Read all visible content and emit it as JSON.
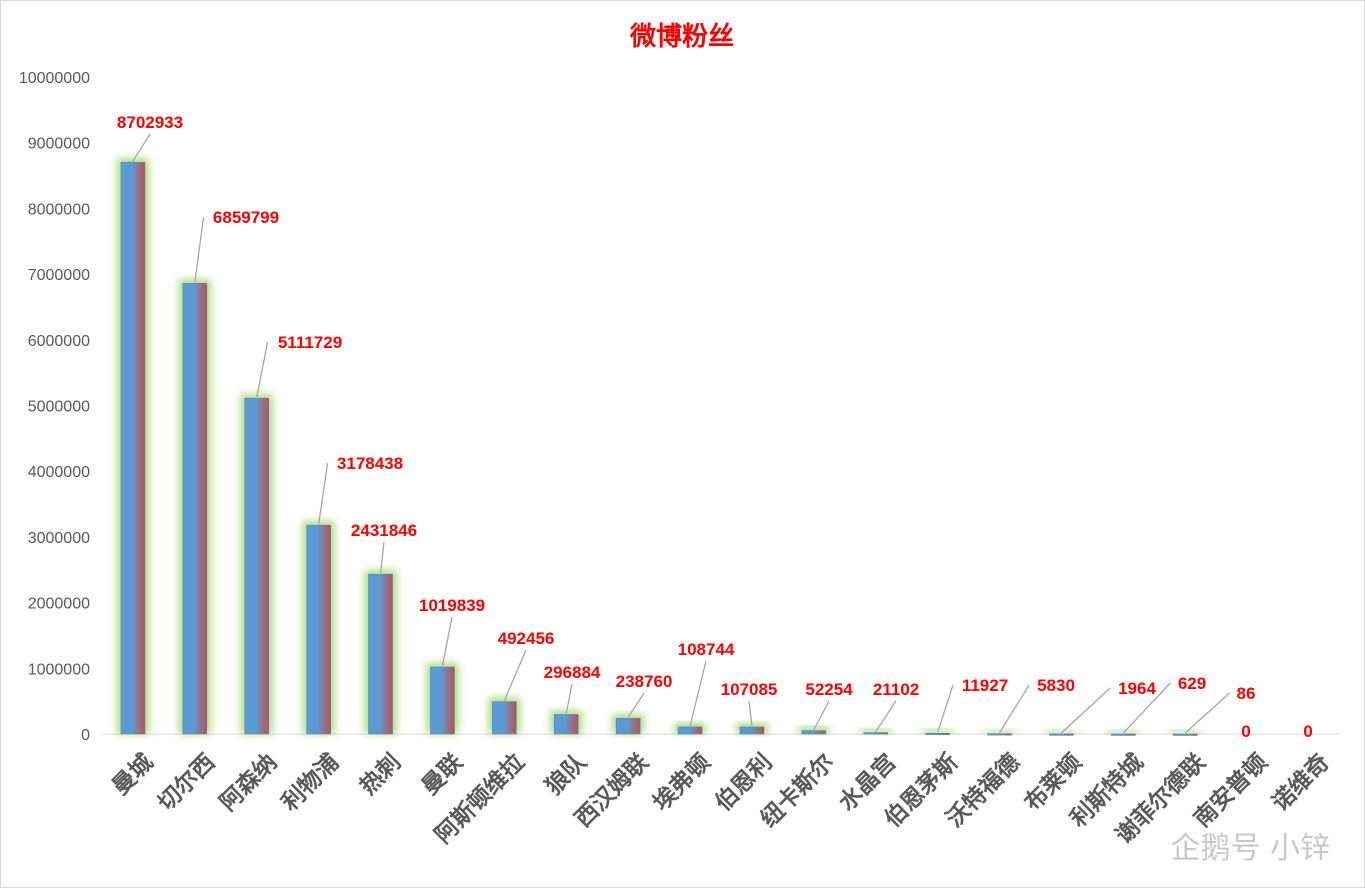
{
  "colors": {
    "title": "#ff0000",
    "data_label": "#ff0000",
    "axis_text": "#595959",
    "bar_left": "#5b9bd5",
    "bar_right": "#c0504d",
    "bar_glow": "#92d050",
    "leader_line": "#a6a6a6",
    "border": "#d9d9d9"
  },
  "watermark": "企鹅号 小锌",
  "chart_data": {
    "type": "bar",
    "title": "微博粉丝",
    "xlabel": "",
    "ylabel": "",
    "ylim": [
      0,
      10000000
    ],
    "yticks": [
      0,
      1000000,
      2000000,
      3000000,
      4000000,
      5000000,
      6000000,
      7000000,
      8000000,
      9000000,
      10000000
    ],
    "ytick_labels": [
      "0",
      "1000000",
      "2000000",
      "3000000",
      "4000000",
      "5000000",
      "6000000",
      "7000000",
      "8000000",
      "9000000",
      "10000000"
    ],
    "grid": false,
    "legend": "none",
    "categories": [
      "曼城",
      "切尔西",
      "阿森纳",
      "利物浦",
      "热刺",
      "曼联",
      "阿斯顿维拉",
      "狼队",
      "西汉姆联",
      "埃弗顿",
      "伯恩利",
      "纽卡斯尔",
      "水晶宫",
      "伯恩茅斯",
      "沃特福德",
      "布莱顿",
      "利斯特城",
      "谢菲尔德联",
      "南安普顿",
      "诺维奇"
    ],
    "values": [
      8702933,
      6859799,
      5111729,
      3178438,
      2431846,
      1019839,
      492456,
      296884,
      238760,
      108744,
      107085,
      52254,
      21102,
      11927,
      5830,
      1964,
      629,
      86,
      0,
      0
    ],
    "data_labels": [
      "8702933",
      "6859799",
      "5111729",
      "3178438",
      "2431846",
      "1019839",
      "492456",
      "296884",
      "238760",
      "108744",
      "107085",
      "52254",
      "21102",
      "11927",
      "5830",
      "1964",
      "629",
      "86",
      "0",
      "0"
    ]
  }
}
